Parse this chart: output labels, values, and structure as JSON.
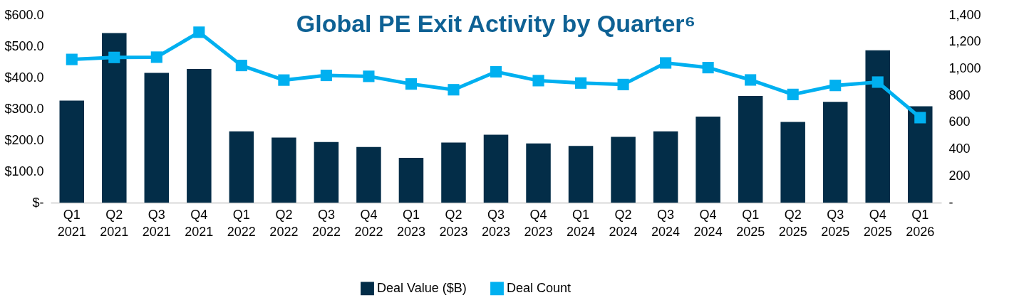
{
  "chart_data": {
    "type": "bar",
    "title": "Global PE Exit Activity by Quarter⁶",
    "categories": [
      "Q1 2021",
      "Q2 2021",
      "Q3 2021",
      "Q4 2021",
      "Q1 2022",
      "Q2 2022",
      "Q3 2022",
      "Q4 2022",
      "Q1 2023",
      "Q2 2023",
      "Q3 2023",
      "Q4 2023",
      "Q1 2024",
      "Q2 2024",
      "Q3 2024",
      "Q4 2024",
      "Q1 2025",
      "Q2 2025",
      "Q3 2025",
      "Q4 2025",
      "Q1 2026"
    ],
    "series": [
      {
        "name": "Deal Value ($B)",
        "color": "#032d48",
        "values": [
          326,
          542,
          415,
          427,
          228,
          208,
          194,
          178,
          143,
          192,
          217,
          189,
          181,
          210,
          228,
          275,
          341,
          258,
          322,
          487,
          308
        ]
      },
      {
        "name": "Deal Count",
        "type": "line",
        "axis": "y2",
        "color": "#00b0f0",
        "marker": "square",
        "values": [
          1068,
          1083,
          1085,
          1271,
          1023,
          914,
          949,
          942,
          885,
          842,
          976,
          910,
          892,
          881,
          1042,
          1007,
          915,
          807,
          874,
          899,
          634
        ]
      }
    ],
    "ylim": [
      0,
      600
    ],
    "yticks": [
      {
        "value": 0,
        "label": "$-"
      },
      {
        "value": 100,
        "label": "$100.0"
      },
      {
        "value": 200,
        "label": "$200.0"
      },
      {
        "value": 300,
        "label": "$300.0"
      },
      {
        "value": 400,
        "label": "$400.0"
      },
      {
        "value": 500,
        "label": "$500.0"
      },
      {
        "value": 600,
        "label": "$600.0"
      }
    ],
    "y2lim": [
      0,
      1400
    ],
    "y2ticks": [
      {
        "value": 0,
        "label": "-"
      },
      {
        "value": 200,
        "label": "200"
      },
      {
        "value": 400,
        "label": "400"
      },
      {
        "value": 600,
        "label": "600"
      },
      {
        "value": 800,
        "label": "800"
      },
      {
        "value": 1000,
        "label": "1,000"
      },
      {
        "value": 1200,
        "label": "1,200"
      },
      {
        "value": 1400,
        "label": "1,400"
      }
    ],
    "grid": false,
    "legend": "bottom"
  }
}
